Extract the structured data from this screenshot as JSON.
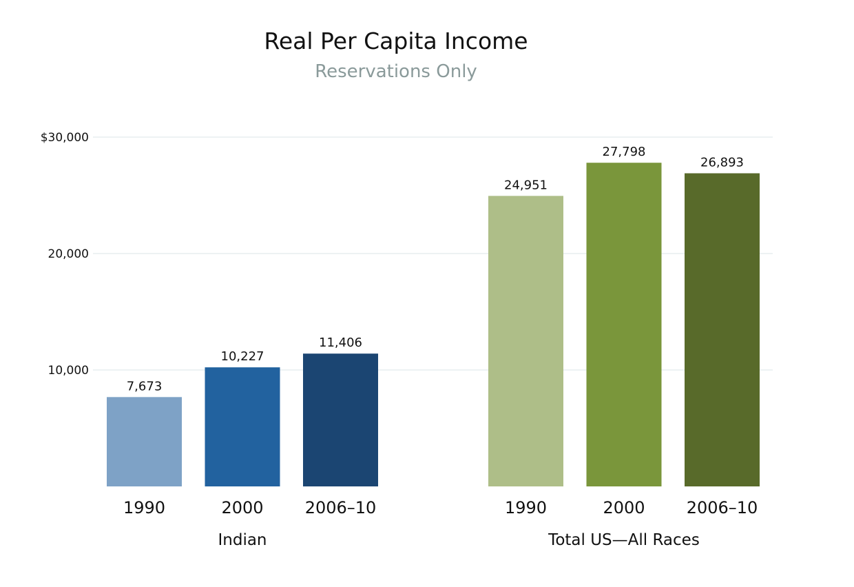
{
  "chart_data": {
    "type": "bar",
    "title": "Real Per Capita Income",
    "subtitle": "Reservations Only",
    "ylim": [
      0,
      30000
    ],
    "yticks": [
      {
        "value": 10000,
        "label": "10,000"
      },
      {
        "value": 20000,
        "label": "20,000"
      },
      {
        "value": 30000,
        "label": "$30,000"
      }
    ],
    "grid": true,
    "groups": [
      {
        "name": "Indian",
        "categories": [
          "1990",
          "2000",
          "2006–10"
        ],
        "values": [
          7673,
          10227,
          11406
        ],
        "labels": [
          "7,673",
          "10,227",
          "11,406"
        ],
        "colors": [
          "#7ea2c6",
          "#22629f",
          "#1b4572"
        ]
      },
      {
        "name": "Total US—All Races",
        "categories": [
          "1990",
          "2000",
          "2006–10"
        ],
        "values": [
          24951,
          27798,
          26893
        ],
        "labels": [
          "24,951",
          "27,798",
          "26,893"
        ],
        "colors": [
          "#aebe88",
          "#7a963b",
          "#586a2a"
        ]
      }
    ],
    "grid_color": "#edf2f3"
  }
}
